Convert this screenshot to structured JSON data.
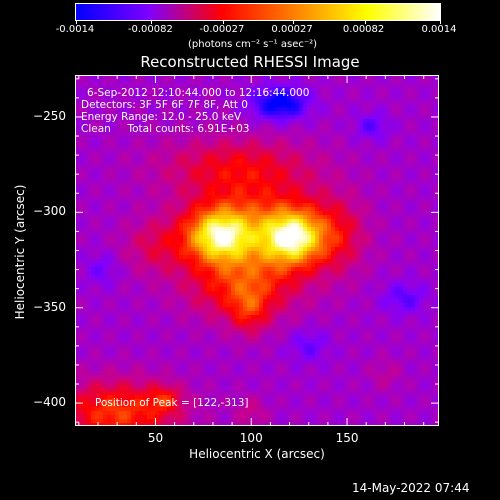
{
  "colorbar": {
    "ticks": [
      "-0.0014",
      "-0.00082",
      "-0.00027",
      "0.00027",
      "0.00082",
      "0.0014"
    ],
    "tick_values": [
      -0.0014,
      -0.00082,
      -0.00027,
      0.00027,
      0.00082,
      0.0014
    ],
    "units": "(photons cm⁻² s⁻¹ asec⁻²)",
    "colormap": [
      "#0000ff",
      "#7f00ff",
      "#ff0000",
      "#ff8000",
      "#ffff00",
      "#ffffff"
    ]
  },
  "annotations": {
    "time_range": "6-Sep-2012 12:10:44.000 to 12:16:44.000",
    "detectors": "Detectors: 3F 5F 6F 7F 8F, Att 0",
    "energy_range": "Energy Range: 12.0 - 25.0 keV",
    "clean_counts": "Clean     Total counts: 6.91E+03",
    "peak": "Position of Peak = [122,-313]"
  },
  "footer": {
    "timestamp": "14-May-2022 07:44"
  },
  "chart_data": {
    "type": "heatmap",
    "title": "Reconstructed RHESSI Image",
    "xlabel": "Heliocentric X (arcsec)",
    "ylabel": "Heliocentric Y (arcsec)",
    "xlim": [
      8,
      198
    ],
    "ylim": [
      -412,
      -228
    ],
    "xticks": [
      50,
      100,
      150
    ],
    "yticks": [
      -250,
      -300,
      -350,
      -400
    ],
    "value_range": [
      -0.0014,
      0.0014
    ],
    "peak_position": [
      122,
      -313
    ],
    "sources": [
      {
        "x": 122,
        "y": -313,
        "sigma_x": 11,
        "sigma_y": 10,
        "amplitude": 0.00142
      },
      {
        "x": 83,
        "y": -312,
        "sigma_x": 12,
        "sigma_y": 10,
        "amplitude": 0.00134
      },
      {
        "x": 103,
        "y": -310,
        "sigma_x": 26,
        "sigma_y": 18,
        "amplitude": 0.00088
      },
      {
        "x": 95,
        "y": -340,
        "sigma_x": 20,
        "sigma_y": 12,
        "amplitude": 0.00068
      },
      {
        "x": 99,
        "y": -352,
        "sigma_x": 7,
        "sigma_y": 9,
        "amplitude": 0.00052
      },
      {
        "x": 92,
        "y": -276,
        "sigma_x": 28,
        "sigma_y": 11,
        "amplitude": 0.00058
      },
      {
        "x": 50,
        "y": -318,
        "sigma_x": 12,
        "sigma_y": 10,
        "amplitude": 0.0004
      },
      {
        "x": 146,
        "y": -312,
        "sigma_x": 10,
        "sigma_y": 14,
        "amplitude": 0.00045
      },
      {
        "x": 30,
        "y": -405,
        "sigma_x": 22,
        "sigma_y": 12,
        "amplitude": 0.00092
      },
      {
        "x": 55,
        "y": -398,
        "sigma_x": 6,
        "sigma_y": 5,
        "amplitude": 0.0005
      },
      {
        "x": 100,
        "y": -405,
        "sigma_x": 6,
        "sigma_y": 6,
        "amplitude": 0.0003
      },
      {
        "x": 170,
        "y": -385,
        "sigma_x": 6,
        "sigma_y": 6,
        "amplitude": 0.00022
      },
      {
        "x": 115,
        "y": -243,
        "sigma_x": 10,
        "sigma_y": 6,
        "amplitude": -0.0009
      },
      {
        "x": 163,
        "y": -255,
        "sigma_x": 6,
        "sigma_y": 5,
        "amplitude": -0.0004
      },
      {
        "x": 180,
        "y": -345,
        "sigma_x": 8,
        "sigma_y": 6,
        "amplitude": -0.0004
      },
      {
        "x": 130,
        "y": -370,
        "sigma_x": 7,
        "sigma_y": 6,
        "amplitude": -0.00035
      },
      {
        "x": 22,
        "y": -330,
        "sigma_x": 6,
        "sigma_y": 6,
        "amplitude": -0.0003
      }
    ],
    "background_level": -0.00058
  }
}
